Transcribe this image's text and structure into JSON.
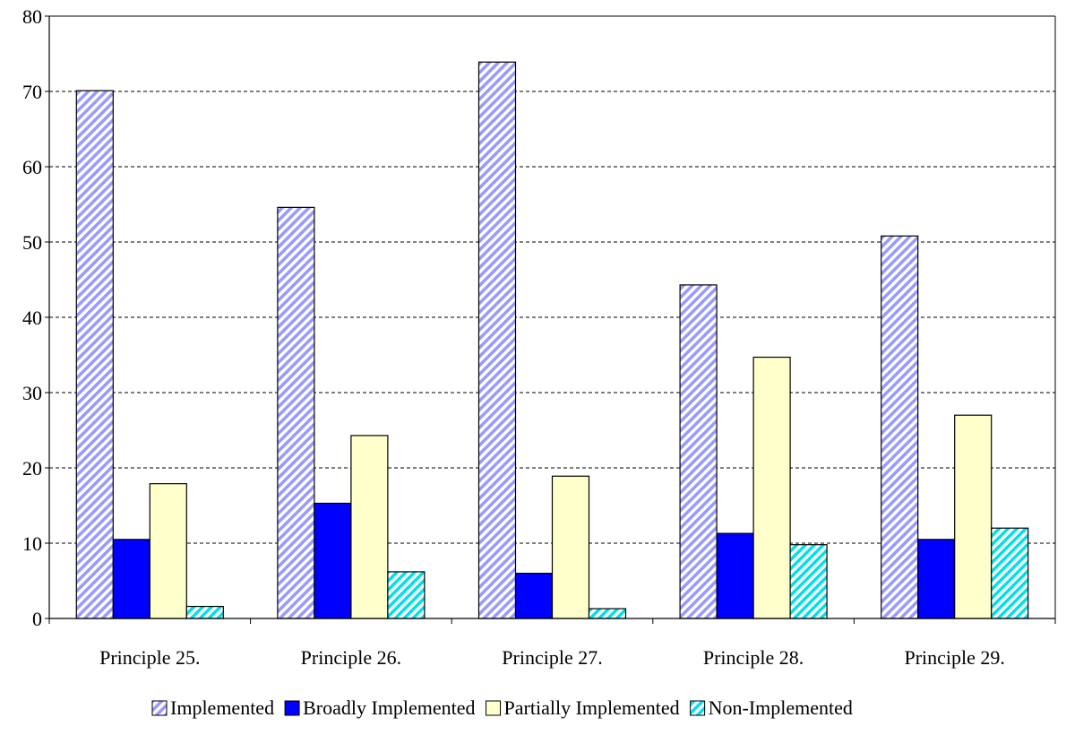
{
  "chart_data": {
    "type": "bar",
    "categories": [
      "Principle 25.",
      "Principle 26.",
      "Principle 27.",
      "Principle 28.",
      "Principle 29."
    ],
    "series": [
      {
        "name": "Implemented",
        "values": [
          70.1,
          54.6,
          73.9,
          44.3,
          50.8
        ],
        "color": "#9999ff",
        "pattern": "diagonal-hatch"
      },
      {
        "name": "Broadly Implemented",
        "values": [
          10.5,
          15.3,
          6.0,
          11.3,
          10.5
        ],
        "color": "#0000ff",
        "pattern": "solid"
      },
      {
        "name": "Partially Implemented",
        "values": [
          17.9,
          24.3,
          18.9,
          34.7,
          27.0
        ],
        "color": "#ffffcc",
        "pattern": "solid"
      },
      {
        "name": "Non-Implemented",
        "values": [
          1.6,
          6.2,
          1.3,
          9.8,
          12.0
        ],
        "color": "#00ffff",
        "pattern": "diagonal-hatch"
      }
    ],
    "yticks": [
      "0",
      "10",
      "20",
      "30",
      "40",
      "50",
      "60",
      "70",
      "80"
    ],
    "ylim": [
      0,
      80
    ],
    "grid": true,
    "legend_position": "bottom",
    "title": "",
    "xlabel": "",
    "ylabel": ""
  }
}
